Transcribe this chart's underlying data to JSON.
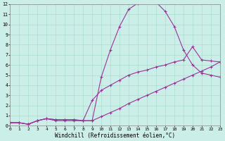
{
  "xlabel": "Windchill (Refroidissement éolien,°C)",
  "background_color": "#cceee8",
  "grid_color": "#aaddcc",
  "line_color": "#993399",
  "xlim": [
    0,
    23
  ],
  "ylim": [
    0,
    12
  ],
  "xticks": [
    0,
    1,
    2,
    3,
    4,
    5,
    6,
    7,
    8,
    9,
    10,
    11,
    12,
    13,
    14,
    15,
    16,
    17,
    18,
    19,
    20,
    21,
    22,
    23
  ],
  "yticks": [
    0,
    1,
    2,
    3,
    4,
    5,
    6,
    7,
    8,
    9,
    10,
    11,
    12
  ],
  "series": [
    {
      "x": [
        0,
        1,
        2,
        3,
        4,
        5,
        6,
        7,
        8,
        9,
        10,
        11,
        12,
        13,
        14,
        15,
        16,
        17,
        18,
        19,
        20,
        21,
        22,
        23
      ],
      "y": [
        0.3,
        0.3,
        0.15,
        0.5,
        0.7,
        0.5,
        0.5,
        0.5,
        0.5,
        0.5,
        4.8,
        7.5,
        9.8,
        11.5,
        12.1,
        12.2,
        12.2,
        11.3,
        9.8,
        7.5,
        6.0,
        5.2,
        5.0,
        4.8
      ]
    },
    {
      "x": [
        0,
        1,
        2,
        3,
        4,
        5,
        6,
        7,
        8,
        9,
        10,
        11,
        12,
        13,
        14,
        15,
        16,
        17,
        18,
        19,
        20,
        21,
        22,
        23
      ],
      "y": [
        0.3,
        0.3,
        0.15,
        0.5,
        0.7,
        0.6,
        0.6,
        0.6,
        0.5,
        2.5,
        3.5,
        4.0,
        4.5,
        5.0,
        5.3,
        5.5,
        5.8,
        6.0,
        6.3,
        6.5,
        7.8,
        6.5,
        6.4,
        6.3
      ]
    },
    {
      "x": [
        0,
        1,
        2,
        3,
        4,
        5,
        6,
        7,
        8,
        9,
        10,
        11,
        12,
        13,
        14,
        15,
        16,
        17,
        18,
        19,
        20,
        21,
        22,
        23
      ],
      "y": [
        0.3,
        0.3,
        0.15,
        0.5,
        0.7,
        0.6,
        0.6,
        0.6,
        0.5,
        0.5,
        0.9,
        1.3,
        1.7,
        2.2,
        2.6,
        3.0,
        3.4,
        3.8,
        4.2,
        4.6,
        5.0,
        5.4,
        5.8,
        6.3
      ]
    }
  ]
}
